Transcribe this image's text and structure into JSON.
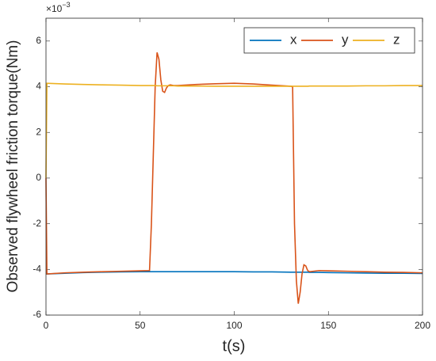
{
  "chart_data": {
    "type": "line",
    "xlabel": "t(s)",
    "ylabel": "Observed flywheel friction torque(Nm)",
    "y_multiplier": {
      "base": "×10",
      "exponent": "−3"
    },
    "x": [
      0,
      0.5,
      10,
      20,
      30,
      40,
      50,
      55,
      56,
      58,
      59,
      60,
      61,
      62,
      63,
      64,
      65,
      66,
      68,
      70,
      80,
      90,
      100,
      110,
      120,
      130,
      131,
      132,
      133,
      134,
      135,
      136,
      137,
      138,
      139,
      140,
      142,
      145,
      150,
      160,
      170,
      180,
      190,
      200
    ],
    "series": [
      {
        "name": "x",
        "color": "#0072bd",
        "values": [
          -4.2,
          -4.2,
          -4.17,
          -4.14,
          -4.12,
          -4.11,
          -4.1,
          -4.1,
          -4.1,
          -4.1,
          -4.1,
          -4.1,
          -4.1,
          -4.1,
          -4.1,
          -4.1,
          -4.1,
          -4.1,
          -4.1,
          -4.1,
          -4.1,
          -4.1,
          -4.1,
          -4.11,
          -4.11,
          -4.12,
          -4.12,
          -4.12,
          -4.12,
          -4.12,
          -4.12,
          -4.12,
          -4.12,
          -4.12,
          -4.12,
          -4.13,
          -4.13,
          -4.13,
          -4.14,
          -4.15,
          -4.16,
          -4.17,
          -4.17,
          -4.18
        ]
      },
      {
        "name": "y",
        "color": "#d95319",
        "values": [
          0,
          -4.2,
          -4.15,
          -4.12,
          -4.1,
          -4.08,
          -4.06,
          -4.05,
          -2,
          4.0,
          5.5,
          5.2,
          4.3,
          3.8,
          3.75,
          3.95,
          4.05,
          4.08,
          4.05,
          4.05,
          4.1,
          4.13,
          4.15,
          4.12,
          4.07,
          4.02,
          4.0,
          -2,
          -4.5,
          -5.5,
          -5.0,
          -4.2,
          -3.8,
          -3.85,
          -4.05,
          -4.1,
          -4.08,
          -4.05,
          -4.06,
          -4.08,
          -4.1,
          -4.12,
          -4.13,
          -4.15
        ]
      },
      {
        "name": "z",
        "color": "#edb120",
        "values": [
          0,
          4.15,
          4.12,
          4.1,
          4.08,
          4.07,
          4.05,
          4.05,
          4.05,
          4.05,
          4.04,
          4.04,
          4.04,
          4.04,
          4.04,
          4.04,
          4.04,
          4.04,
          4.04,
          4.03,
          4.03,
          4.02,
          4.02,
          4.02,
          4.02,
          4.02,
          4.02,
          4.02,
          4.02,
          4.02,
          4.02,
          4.02,
          4.02,
          4.02,
          4.02,
          4.03,
          4.03,
          4.03,
          4.03,
          4.03,
          4.04,
          4.04,
          4.05,
          4.05
        ]
      }
    ],
    "xlim": [
      0,
      200
    ],
    "xticks": [
      0,
      50,
      100,
      150,
      200
    ],
    "ylim": [
      -6,
      7
    ],
    "yticks": [
      -6,
      -4,
      -2,
      0,
      2,
      4,
      6
    ],
    "legend": "upper-right"
  }
}
